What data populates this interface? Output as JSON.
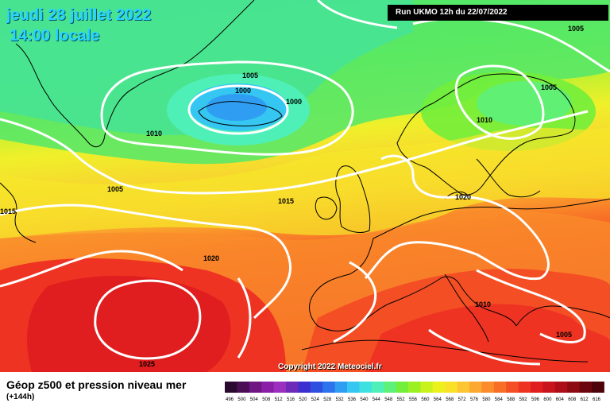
{
  "header": {
    "date_line": "jeudi 28 juillet 2022",
    "time_line": "14:00 locale",
    "run_info": "Run UKMO 12h du 22/07/2022"
  },
  "map": {
    "copyright": "Copyright 2022 Meteociel.fr",
    "isobar_labels": [
      "1005",
      "1005",
      "1000",
      "1000",
      "1010",
      "1005",
      "1015",
      "1015",
      "1020",
      "1025",
      "1005",
      "1010",
      "1020",
      "1010",
      "1005"
    ]
  },
  "legend": {
    "title": "Géop z500 et pression niveau mer",
    "subtitle": "(+144h)",
    "ticks": [
      "496",
      "500",
      "504",
      "508",
      "512",
      "516",
      "520",
      "524",
      "528",
      "532",
      "536",
      "540",
      "544",
      "548",
      "552",
      "556",
      "560",
      "564",
      "568",
      "572",
      "576",
      "580",
      "584",
      "588",
      "592",
      "596",
      "600",
      "604",
      "608",
      "612",
      "616"
    ],
    "colors": [
      "#2a0a2e",
      "#4b0d55",
      "#6e1682",
      "#8a1ea6",
      "#9b2fbf",
      "#6d2ab8",
      "#3c2fd1",
      "#2f4fe0",
      "#2d73ec",
      "#2f9ef2",
      "#35c6f2",
      "#3ee0e0",
      "#4ef0b8",
      "#5df07a",
      "#72ee3b",
      "#9cf022",
      "#c9f21a",
      "#ecf01c",
      "#fbe02a",
      "#fcc531",
      "#fba930",
      "#fa8c2b",
      "#f86e26",
      "#f44f24",
      "#ee3322",
      "#e01d1f",
      "#c8141c",
      "#ad0e18",
      "#8e0a13",
      "#6c060e",
      "#4e0308"
    ]
  },
  "colors": {
    "isobar": "#ffffff",
    "coast": "#000000",
    "title": "#29d3ff"
  }
}
